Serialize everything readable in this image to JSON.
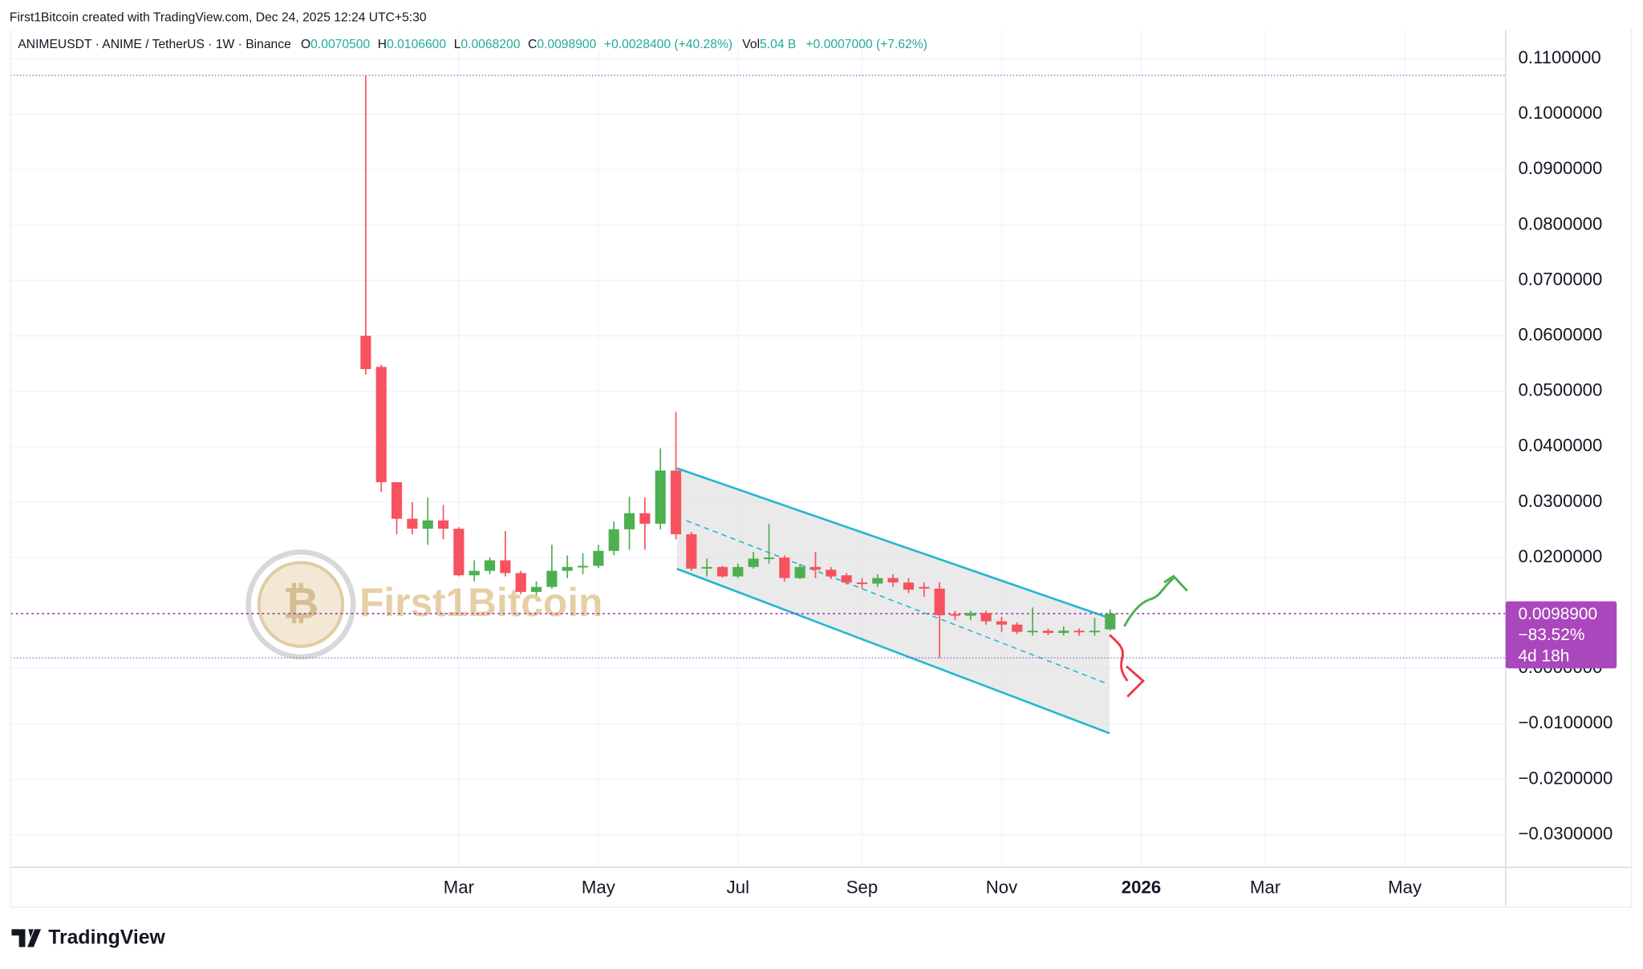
{
  "header": {
    "credit": "First1Bitcoin created with TradingView.com, Dec 24, 2025 12:24 UTC+5:30",
    "symbol": "ANIMEUSDT · ANIME / TetherUS · 1W · Binance",
    "open_label": "O",
    "open": "0.0070500",
    "high_label": "H",
    "high": "0.0106600",
    "low_label": "L",
    "low": "0.0068200",
    "close_label": "C",
    "close": "0.0098900",
    "change": "+0.0028400 (+40.28%)",
    "volume_label": "Vol",
    "volume": "5.04 B",
    "volume_change": "+0.0007000 (+7.62%)"
  },
  "price_label": {
    "price": "0.0098900",
    "change": "−83.52%",
    "countdown": "4d 18h"
  },
  "watermark": "First1Bitcoin",
  "logo": "TradingView",
  "chart_data": {
    "type": "candlestick",
    "up_color": "#4caf50",
    "down_color": "#f7525f",
    "grid": true,
    "x": [
      0,
      1,
      2,
      3,
      4,
      5,
      6,
      7,
      8,
      9,
      10,
      11,
      12,
      13,
      14,
      15,
      16,
      17,
      18,
      19,
      20,
      21,
      22,
      23,
      24,
      25,
      26,
      27,
      28,
      29,
      30,
      31,
      32,
      33,
      34,
      35,
      36,
      37,
      38,
      39,
      40,
      41,
      42,
      43,
      44,
      45,
      46,
      47,
      48
    ],
    "open": [
      0.06,
      0.0544,
      0.0336,
      0.027,
      0.0252,
      0.0267,
      0.0252,
      0.0168,
      0.0176,
      0.0195,
      0.0172,
      0.0138,
      0.0147,
      0.0176,
      0.0183,
      0.0185,
      0.0212,
      0.0251,
      0.028,
      0.0261,
      0.0357,
      0.0242,
      0.018,
      0.0183,
      0.0166,
      0.0183,
      0.0198,
      0.02,
      0.0163,
      0.0183,
      0.0178,
      0.0168,
      0.0155,
      0.0153,
      0.0163,
      0.0155,
      0.0147,
      0.0144,
      0.0098,
      0.0095,
      0.01,
      0.0085,
      0.0079,
      0.0066,
      0.0068,
      0.0064,
      0.0068,
      0.0066,
      0.00705
    ],
    "high": [
      0.107,
      0.0548,
      0.0336,
      0.03,
      0.0308,
      0.0295,
      0.0255,
      0.0195,
      0.02,
      0.0248,
      0.0176,
      0.0157,
      0.0223,
      0.0204,
      0.0208,
      0.0223,
      0.0265,
      0.031,
      0.0308,
      0.0397,
      0.0463,
      0.0246,
      0.0198,
      0.0185,
      0.0189,
      0.021,
      0.0261,
      0.0204,
      0.0189,
      0.021,
      0.0183,
      0.0172,
      0.0163,
      0.017,
      0.017,
      0.0163,
      0.0155,
      0.0155,
      0.0104,
      0.0104,
      0.0104,
      0.0093,
      0.0083,
      0.011,
      0.0072,
      0.0076,
      0.0072,
      0.0091,
      0.01066
    ],
    "low": [
      0.053,
      0.0318,
      0.0242,
      0.0242,
      0.0223,
      0.0233,
      0.0166,
      0.0157,
      0.017,
      0.0166,
      0.0134,
      0.0132,
      0.0144,
      0.0163,
      0.017,
      0.0181,
      0.0204,
      0.0214,
      0.0214,
      0.0251,
      0.0233,
      0.0176,
      0.0166,
      0.0164,
      0.0163,
      0.018,
      0.0189,
      0.0157,
      0.0161,
      0.0163,
      0.0161,
      0.0151,
      0.0144,
      0.0147,
      0.0147,
      0.0136,
      0.0129,
      0.0019,
      0.0087,
      0.0087,
      0.0079,
      0.0066,
      0.0062,
      0.0059,
      0.006,
      0.0059,
      0.0059,
      0.0059,
      0.00682
    ],
    "close": [
      0.054,
      0.0336,
      0.027,
      0.0252,
      0.0267,
      0.0252,
      0.0168,
      0.0176,
      0.0195,
      0.0172,
      0.0138,
      0.0147,
      0.0176,
      0.0183,
      0.0185,
      0.0212,
      0.0251,
      0.028,
      0.0261,
      0.0357,
      0.0242,
      0.018,
      0.0183,
      0.0166,
      0.0183,
      0.0198,
      0.02,
      0.0163,
      0.0183,
      0.0178,
      0.0166,
      0.0155,
      0.0153,
      0.0163,
      0.0155,
      0.0142,
      0.0144,
      0.0096,
      0.0095,
      0.01,
      0.0085,
      0.0079,
      0.0066,
      0.0068,
      0.0064,
      0.0068,
      0.0066,
      0.0068,
      0.00989
    ],
    "xlim": [
      -22.9,
      73.5
    ],
    "xticks": [
      {
        "value": 6,
        "label": "Mar"
      },
      {
        "value": 15,
        "label": "May"
      },
      {
        "value": 24,
        "label": "Jul"
      },
      {
        "value": 32,
        "label": "Sep"
      },
      {
        "value": 41,
        "label": "Nov"
      },
      {
        "value": 50,
        "label": "2026"
      },
      {
        "value": 58,
        "label": "Mar"
      },
      {
        "value": 67,
        "label": "May"
      }
    ],
    "ylim": [
      -0.0359,
      0.1153
    ],
    "yticks": [
      {
        "value": 0.11,
        "label": "0.1100000"
      },
      {
        "value": 0.1,
        "label": "0.1000000"
      },
      {
        "value": 0.09,
        "label": "0.0900000"
      },
      {
        "value": 0.08,
        "label": "0.0800000"
      },
      {
        "value": 0.07,
        "label": "0.0700000"
      },
      {
        "value": 0.06,
        "label": "0.0600000"
      },
      {
        "value": 0.05,
        "label": "0.0500000"
      },
      {
        "value": 0.04,
        "label": "0.0400000"
      },
      {
        "value": 0.03,
        "label": "0.0300000"
      },
      {
        "value": 0.02,
        "label": "0.0200000"
      },
      {
        "value": 0,
        "label": "0.0000000"
      },
      {
        "value": -0.01,
        "label": "−0.0100000"
      },
      {
        "value": -0.02,
        "label": "−0.0200000"
      },
      {
        "value": -0.03,
        "label": "−0.0300000"
      }
    ]
  }
}
